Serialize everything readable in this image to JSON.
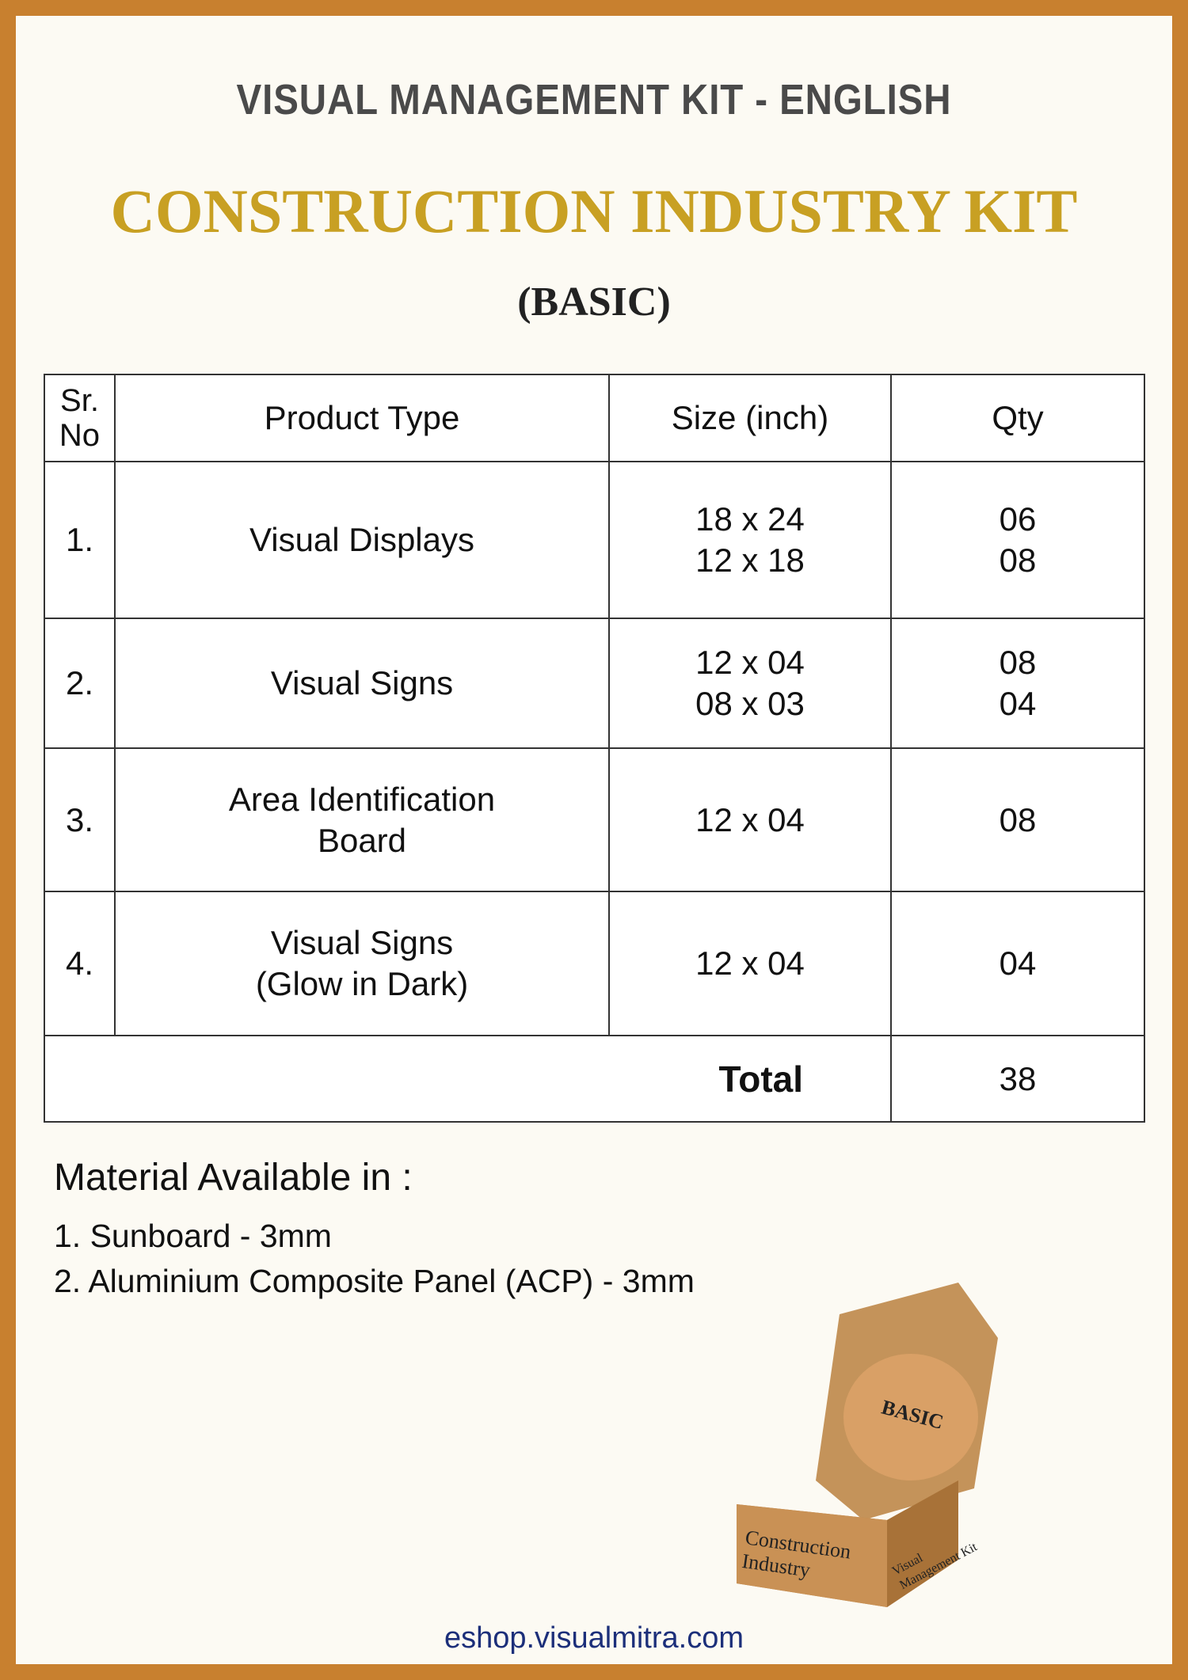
{
  "header": {
    "title": "VISUAL MANAGEMENT KIT - ENGLISH",
    "subtitle": "CONSTRUCTION INDUSTRY KIT",
    "variant": "(BASIC)"
  },
  "table": {
    "headers": [
      "Sr. No",
      "Product Type",
      "Size (inch)",
      "Qty"
    ],
    "rows": [
      {
        "sr": "1.",
        "product": [
          "Visual Displays"
        ],
        "sizes": [
          "18 x 24",
          "12 x 18"
        ],
        "qty": [
          "06",
          "08"
        ]
      },
      {
        "sr": "2.",
        "product": [
          "Visual Signs"
        ],
        "sizes": [
          "12 x 04",
          "08 x 03"
        ],
        "qty": [
          "08",
          "04"
        ]
      },
      {
        "sr": "3.",
        "product": [
          "Area Identification",
          "Board"
        ],
        "sizes": [
          "12 x 04"
        ],
        "qty": [
          "08"
        ]
      },
      {
        "sr": "4.",
        "product": [
          "Visual Signs",
          "(Glow in Dark)"
        ],
        "sizes": [
          "12 x 04"
        ],
        "qty": [
          "04"
        ]
      }
    ],
    "total_label": "Total",
    "total": "38"
  },
  "materials": {
    "heading": "Material Available in :",
    "items": [
      "1. Sunboard - 3mm",
      "2. Aluminium Composite Panel  (ACP) - 3mm"
    ]
  },
  "box": {
    "lid_label": "BASIC",
    "front_label": [
      "Construction",
      "Industry"
    ],
    "side_label": [
      "Visual",
      "Management Kit"
    ]
  },
  "footer": {
    "url": "eshop.visualmitra.com"
  }
}
